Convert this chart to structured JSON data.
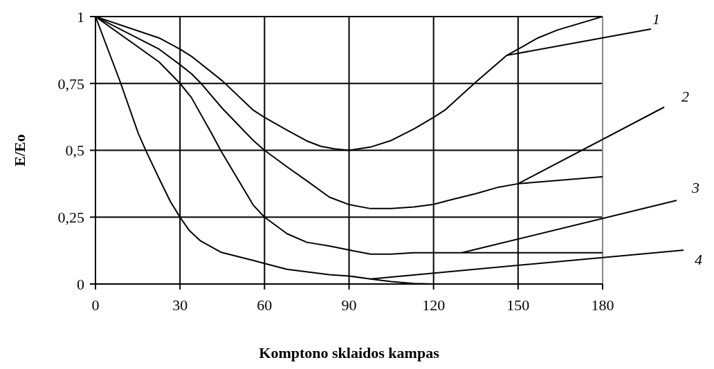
{
  "chart_data": {
    "type": "line",
    "xlabel": "Komptono sklaidos kampas",
    "ylabel": "E/Eo",
    "xlim": [
      0,
      180
    ],
    "xticks": [
      0,
      30,
      60,
      90,
      120,
      150,
      180
    ],
    "ylim": [
      0,
      1
    ],
    "yticks": [
      0,
      {
        "value": 0.25,
        "label": "0,25"
      },
      {
        "value": 0.5,
        "label": "0,5"
      },
      {
        "value": 0.75,
        "label": "0,75"
      },
      1
    ],
    "grid": true,
    "legend": false,
    "marker": "none",
    "line_style": "solid",
    "series": [
      {
        "name": "1",
        "color": "#000000",
        "x": [
          0,
          22.6,
          30,
          34,
          45,
          56,
          60,
          68,
          75,
          80,
          85,
          90,
          97.6,
          105,
          113,
          120,
          124,
          135,
          146,
          150,
          157,
          164,
          180
        ],
        "values": [
          1,
          0.92,
          0.878,
          0.852,
          0.76,
          0.65,
          0.623,
          0.575,
          0.535,
          0.515,
          0.505,
          0.5,
          0.512,
          0.537,
          0.58,
          0.623,
          0.65,
          0.755,
          0.855,
          0.878,
          0.92,
          0.95,
          1
        ]
      },
      {
        "name": "2",
        "color": "#000000",
        "x": [
          0,
          22.6,
          30,
          34,
          37.3,
          45,
          56,
          60,
          68,
          75,
          83,
          90,
          97.6,
          105,
          113,
          120,
          127,
          135,
          143,
          150,
          180
        ],
        "values": [
          1,
          0.878,
          0.82,
          0.787,
          0.752,
          0.657,
          0.537,
          0.5,
          0.438,
          0.386,
          0.325,
          0.297,
          0.282,
          0.282,
          0.288,
          0.298,
          0.317,
          0.338,
          0.362,
          0.375,
          0.401
        ]
      },
      {
        "name": "3",
        "color": "#000000",
        "x": [
          0,
          22.6,
          30,
          34,
          41,
          44.7,
          56,
          60,
          68,
          75,
          83,
          90,
          97.6,
          105,
          113,
          130,
          180
        ],
        "values": [
          1,
          0.83,
          0.75,
          0.698,
          0.567,
          0.495,
          0.295,
          0.25,
          0.188,
          0.156,
          0.142,
          0.127,
          0.112,
          0.112,
          0.117,
          0.117,
          0.117
        ]
      },
      {
        "name": "4",
        "color": "#000000",
        "x": [
          0,
          8.6,
          15.2,
          18.1,
          22.6,
          26.6,
          30,
          33.3,
          37.3,
          44.7,
          55.4,
          60,
          68,
          83,
          90,
          97.6,
          105,
          113,
          120,
          180
        ],
        "values": [
          1,
          0.761,
          0.563,
          0.494,
          0.394,
          0.308,
          0.25,
          0.2,
          0.161,
          0.118,
          0.09,
          0.077,
          0.055,
          0.035,
          0.03,
          0.019,
          0.009,
          0.002,
          0,
          0
        ]
      }
    ]
  }
}
